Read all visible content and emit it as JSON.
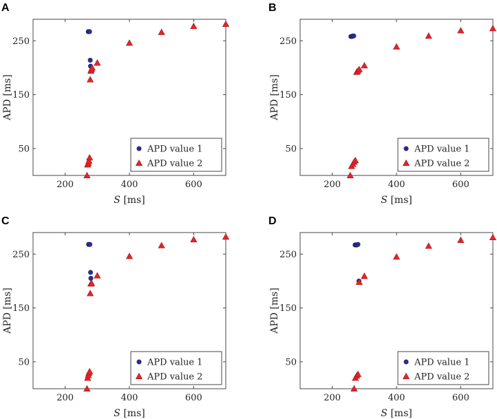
{
  "colors": {
    "s1": "#2b2f8f",
    "s2": "#e0262a"
  },
  "chart_data": [
    {
      "type": "scatter",
      "panel": "A",
      "xlabel_italic": "S",
      "xlabel_unit": "[ms]",
      "ylabel": "APD [ms]",
      "xlim": [
        100,
        700
      ],
      "ylim": [
        0,
        290
      ],
      "xticks": [
        200,
        400,
        600
      ],
      "yticks": [
        50,
        150,
        250
      ],
      "legend_position": "bottom-right",
      "series": [
        {
          "name": "APD value 1",
          "marker": "circle",
          "x": [
            272,
            274,
            276,
            278,
            279
          ],
          "y": [
            267,
            267,
            267,
            214,
            203
          ]
        },
        {
          "name": "APD value 2",
          "marker": "triangle",
          "x": [
            268,
            270,
            272,
            274,
            276,
            278,
            280,
            282,
            284,
            300,
            400,
            500,
            600,
            700
          ],
          "y": [
            0,
            20,
            23,
            27,
            33,
            178,
            194,
            197,
            200,
            209,
            246,
            266,
            277,
            281
          ]
        }
      ]
    },
    {
      "type": "scatter",
      "panel": "B",
      "xlabel_italic": "S",
      "xlabel_unit": "[ms]",
      "ylabel": "APD [ms]",
      "xlim": [
        100,
        700
      ],
      "ylim": [
        0,
        290
      ],
      "xticks": [
        200,
        400,
        600
      ],
      "yticks": [
        50,
        150,
        250
      ],
      "legend_position": "bottom-right",
      "series": [
        {
          "name": "APD value 1",
          "marker": "circle",
          "x": [
            258,
            261,
            264,
            267
          ],
          "y": [
            258,
            258,
            259,
            259
          ]
        },
        {
          "name": "APD value 2",
          "marker": "triangle",
          "x": [
            256,
            260,
            264,
            268,
            272,
            276,
            280,
            284,
            300,
            400,
            500,
            600,
            700
          ],
          "y": [
            0,
            17,
            21,
            25,
            28,
            192,
            194,
            197,
            204,
            239,
            259,
            269,
            273
          ]
        }
      ]
    },
    {
      "type": "scatter",
      "panel": "C",
      "xlabel_italic": "S",
      "xlabel_unit": "[ms]",
      "ylabel": "APD [ms]",
      "xlim": [
        100,
        700
      ],
      "ylim": [
        0,
        290
      ],
      "xticks": [
        200,
        400,
        600
      ],
      "yticks": [
        50,
        150,
        250
      ],
      "legend_position": "bottom-right",
      "series": [
        {
          "name": "APD value 1",
          "marker": "circle",
          "x": [
            273,
            275,
            277,
            279,
            280
          ],
          "y": [
            268,
            268,
            268,
            216,
            205
          ]
        },
        {
          "name": "APD value 2",
          "marker": "triangle",
          "x": [
            268,
            270,
            272,
            274,
            276,
            278,
            280,
            282,
            300,
            400,
            500,
            600,
            700
          ],
          "y": [
            0,
            20,
            25,
            29,
            32,
            177,
            195,
            196,
            210,
            246,
            266,
            277,
            282
          ]
        }
      ]
    },
    {
      "type": "scatter",
      "panel": "D",
      "xlabel_italic": "S",
      "xlabel_unit": "[ms]",
      "ylabel": "APD [ms]",
      "xlim": [
        100,
        700
      ],
      "ylim": [
        0,
        290
      ],
      "xticks": [
        200,
        400,
        600
      ],
      "yticks": [
        50,
        150,
        250
      ],
      "legend_position": "bottom-right",
      "series": [
        {
          "name": "APD value 1",
          "marker": "circle",
          "x": [
            271,
            274,
            277,
            280,
            283
          ],
          "y": [
            267,
            267,
            267,
            268,
            200
          ]
        },
        {
          "name": "APD value 2",
          "marker": "triangle",
          "x": [
            268,
            272,
            276,
            280,
            284,
            300,
            400,
            500,
            600,
            700
          ],
          "y": [
            0,
            20,
            24,
            27,
            198,
            209,
            245,
            265,
            276,
            281
          ]
        }
      ]
    }
  ]
}
